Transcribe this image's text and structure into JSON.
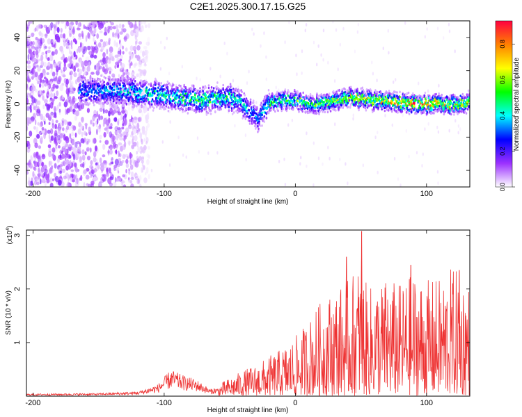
{
  "figure_title": "C2E1.2025.300.17.15.G25",
  "colorbar": {
    "label": "Normalized spectral amplitude",
    "ticks": [
      "0.0",
      "0.2",
      "0.4",
      "0.6",
      "0.8"
    ],
    "tick_values": [
      0.0,
      0.2,
      0.4,
      0.6,
      0.8
    ],
    "range": [
      0,
      0.93
    ],
    "colors": [
      "#ffffff",
      "#9b30ff",
      "#0000ff",
      "#00ffff",
      "#00ff00",
      "#ffff00",
      "#ff8000",
      "#ff0040"
    ]
  },
  "chart_data": [
    {
      "type": "heatmap",
      "title": "C2E1.2025.300.17.15.G25",
      "xlabel": "Height of straight line (km)",
      "ylabel": "Frequency (Hz)",
      "xlim": [
        -205,
        133
      ],
      "ylim": [
        -50,
        50
      ],
      "x_ticks": [
        -200,
        -100,
        0,
        100
      ],
      "x_tick_labels": [
        "-200",
        "-100",
        "0",
        "100"
      ],
      "y_ticks": [
        -40,
        -20,
        0,
        20,
        40
      ],
      "y_tick_labels": [
        "-40",
        "-20",
        "0",
        "20",
        "40"
      ],
      "noise_region_x": [
        -205,
        -120
      ],
      "ridge": {
        "x": [
          -165,
          -140,
          -120,
          -100,
          -80,
          -70,
          -60,
          -50,
          -40,
          -35,
          -30,
          -28,
          -25,
          -20,
          -10,
          0,
          10,
          20,
          30,
          40,
          50,
          60,
          70,
          80,
          90,
          100,
          110,
          120,
          133
        ],
        "y": [
          8,
          8,
          7,
          5,
          3,
          2,
          4,
          4,
          0,
          -4,
          -8,
          -10,
          -4,
          0,
          2,
          2,
          0,
          0,
          2,
          4,
          3,
          2,
          2,
          1,
          0,
          0,
          0,
          0,
          1
        ],
        "peak_amplitude": [
          0.35,
          0.4,
          0.45,
          0.5,
          0.5,
          0.55,
          0.5,
          0.5,
          0.45,
          0.4,
          0.35,
          0.35,
          0.4,
          0.5,
          0.6,
          0.6,
          0.55,
          0.6,
          0.65,
          0.7,
          0.7,
          0.7,
          0.75,
          0.8,
          0.92,
          0.85,
          0.8,
          0.75,
          0.7
        ]
      }
    },
    {
      "type": "line",
      "xlabel": "Height of straight line (km)",
      "ylabel": "SNR (10 * v/v)",
      "y_scale_label": "(x10",
      "y_scale_exponent": "4",
      "y_scale_close": ")",
      "xlim": [
        -205,
        133
      ],
      "ylim": [
        0,
        3.1
      ],
      "x_ticks": [
        -200,
        -100,
        0,
        100
      ],
      "x_tick_labels": [
        "-200",
        "-100",
        "0",
        "100"
      ],
      "y_ticks": [
        1,
        2,
        3
      ],
      "y_tick_labels": [
        "1",
        "2",
        "3"
      ],
      "color": "#ee3333",
      "envelope_x": [
        -205,
        -150,
        -120,
        -105,
        -95,
        -85,
        -75,
        -65,
        -60,
        -55,
        -40,
        -30,
        -20,
        -10,
        0,
        10,
        20,
        30,
        40,
        50,
        55,
        60,
        70,
        80,
        90,
        100,
        110,
        120,
        133
      ],
      "envelope_y": [
        0.04,
        0.05,
        0.08,
        0.2,
        0.45,
        0.35,
        0.28,
        0.12,
        0.15,
        0.25,
        0.45,
        0.55,
        0.7,
        0.85,
        1.05,
        1.35,
        1.7,
        1.9,
        2.05,
        2.4,
        1.9,
        2.0,
        2.1,
        2.0,
        2.2,
        2.05,
        2.1,
        2.3,
        2.0
      ],
      "peaks": [
        {
          "x": 50.5,
          "y": 3.08
        },
        {
          "x": 39,
          "y": 2.6
        },
        {
          "x": 88,
          "y": 2.45
        },
        {
          "x": 125,
          "y": 2.35
        }
      ]
    }
  ]
}
